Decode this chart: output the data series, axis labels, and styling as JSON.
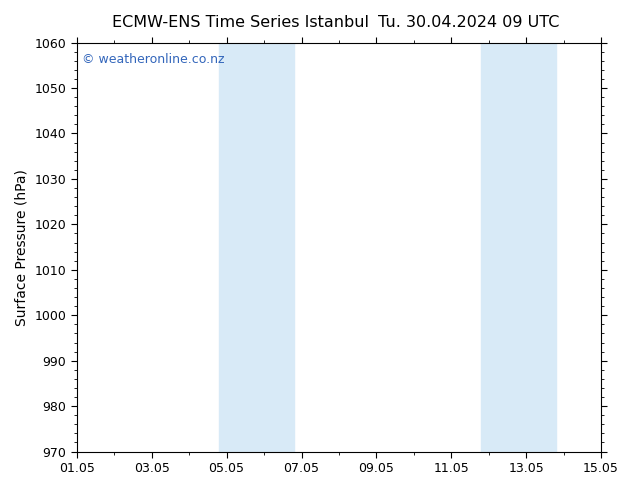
{
  "title_left": "ECMW-ENS Time Series Istanbul",
  "title_right": "Tu. 30.04.2024 09 UTC",
  "ylabel": "Surface Pressure (hPa)",
  "ylim": [
    970,
    1060
  ],
  "yticks": [
    970,
    980,
    990,
    1000,
    1010,
    1020,
    1030,
    1040,
    1050,
    1060
  ],
  "xlim_start": 0.0,
  "xlim_end": 14.0,
  "xtick_positions": [
    0,
    2,
    4,
    6,
    8,
    10,
    12,
    14
  ],
  "xtick_labels": [
    "01.05",
    "03.05",
    "05.05",
    "07.05",
    "09.05",
    "11.05",
    "13.05",
    "15.05"
  ],
  "shaded_bands": [
    {
      "xmin": 3.8,
      "xmax": 5.8
    },
    {
      "xmin": 10.8,
      "xmax": 12.8
    }
  ],
  "band_color": "#d8eaf7",
  "background_color": "#ffffff",
  "plot_bg_color": "#ffffff",
  "watermark_text": "© weatheronline.co.nz",
  "watermark_color": "#3366bb",
  "title_fontsize": 11.5,
  "axis_label_fontsize": 10,
  "tick_fontsize": 9,
  "watermark_fontsize": 9
}
